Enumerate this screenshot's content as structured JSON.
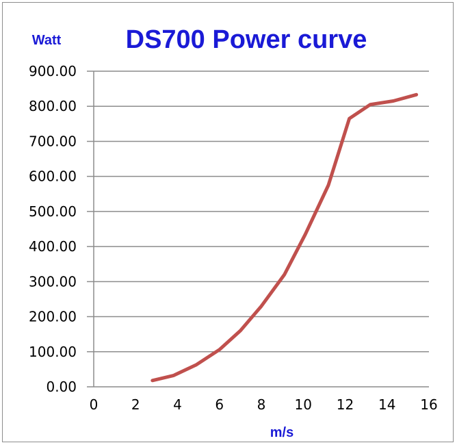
{
  "chart_data": {
    "type": "line",
    "title": "DS700 Power curve",
    "ylabel": "Watt",
    "xlabel": "m/s",
    "xlim": [
      0,
      16
    ],
    "ylim": [
      0,
      900
    ],
    "x_ticks": [
      0,
      2,
      4,
      6,
      8,
      10,
      12,
      14,
      16
    ],
    "y_ticks": [
      "0.00",
      "100.00",
      "200.00",
      "300.00",
      "400.00",
      "500.00",
      "600.00",
      "700.00",
      "800.00",
      "900.00"
    ],
    "grid": "horizontal",
    "series": [
      {
        "color": "#c0504d",
        "x": [
          2.8,
          3.8,
          4.9,
          6.0,
          7.0,
          8.0,
          9.1,
          10.1,
          11.2,
          12.2,
          13.2,
          14.3,
          15.4
        ],
        "y": [
          18,
          32,
          63,
          106,
          160,
          230,
          320,
          435,
          575,
          765,
          805,
          815,
          833
        ]
      }
    ]
  }
}
